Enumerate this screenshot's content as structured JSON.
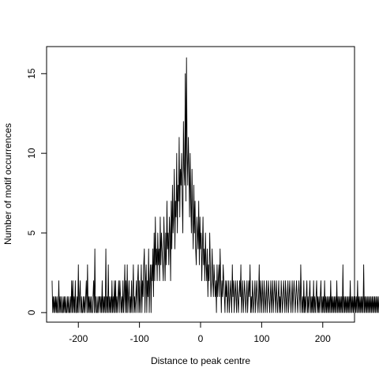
{
  "chart_data": {
    "type": "line",
    "title": "",
    "xlabel": "Distance to peak centre",
    "ylabel": "Number of motif occurrences",
    "xlim": [
      -252,
      252
    ],
    "ylim": [
      -0.6,
      16.7
    ],
    "x_ticks": [
      -200,
      -100,
      0,
      100,
      200
    ],
    "y_ticks": [
      0,
      5,
      10,
      15
    ],
    "x_tick_labels": [
      "-200",
      "-100",
      "0",
      "100",
      "200"
    ],
    "y_tick_labels": [
      "0",
      "5",
      "10",
      "15"
    ],
    "grid": false,
    "line_color": "#000000",
    "series": [
      {
        "x_start": -243,
        "x_step": 1,
        "values": [
          2,
          0,
          1,
          0,
          1,
          0,
          1,
          0,
          1,
          0,
          0,
          2,
          0,
          1,
          0,
          1,
          0,
          0,
          1,
          0,
          1,
          0,
          1,
          0,
          0,
          1,
          0,
          1,
          0,
          0,
          1,
          0,
          2,
          0,
          2,
          0,
          1,
          0,
          2,
          0,
          0,
          1,
          0,
          3,
          0,
          1,
          2,
          0,
          1,
          0,
          0,
          1,
          0,
          1,
          0,
          1,
          2,
          0,
          3,
          0,
          1,
          0,
          1,
          0,
          1,
          0,
          0,
          1,
          2,
          0,
          4,
          0,
          1,
          0,
          0,
          1,
          0,
          1,
          1,
          0,
          1,
          0,
          2,
          0,
          1,
          0,
          1,
          0,
          4,
          0,
          1,
          0,
          3,
          0,
          1,
          0,
          1,
          0,
          2,
          0,
          1,
          0,
          2,
          0,
          2,
          0,
          1,
          0,
          1,
          2,
          0,
          2,
          1,
          0,
          1,
          0,
          2,
          0,
          1,
          3,
          0,
          2,
          0,
          3,
          0,
          1,
          2,
          0,
          1,
          0,
          2,
          0,
          1,
          3,
          0,
          1,
          0,
          1,
          2,
          0,
          2,
          3,
          0,
          2,
          0,
          1,
          3,
          0,
          2,
          1,
          3,
          4,
          0,
          2,
          3,
          0,
          2,
          1,
          4,
          0,
          2,
          3,
          0,
          3,
          2,
          4,
          1,
          5,
          2,
          6,
          3,
          4,
          2,
          5,
          3,
          4,
          2,
          6,
          3,
          5,
          4,
          3,
          2,
          6,
          4,
          2,
          5,
          3,
          7,
          4,
          5,
          3,
          6,
          5,
          2,
          7,
          4,
          8,
          5,
          6,
          9,
          4,
          7,
          6,
          10,
          5,
          8,
          7,
          11,
          6,
          9,
          8,
          10,
          7,
          5,
          12,
          9,
          8,
          15,
          7,
          16,
          10,
          8,
          11,
          9,
          6,
          10,
          7,
          5,
          9,
          6,
          4,
          8,
          5,
          7,
          4,
          3,
          6,
          5,
          4,
          7,
          3,
          6,
          4,
          5,
          2,
          4,
          6,
          3,
          4,
          2,
          5,
          3,
          2,
          4,
          1,
          3,
          2,
          5,
          3,
          1,
          2,
          4,
          2,
          1,
          3,
          2,
          1,
          2,
          0,
          3,
          1,
          2,
          3,
          1,
          4,
          2,
          0,
          2,
          1,
          3,
          2,
          1,
          0,
          2,
          1,
          2,
          0,
          1,
          2,
          0,
          1,
          2,
          1,
          0,
          3,
          1,
          2,
          0,
          1,
          2,
          1,
          0,
          2,
          1,
          0,
          1,
          2,
          1,
          3,
          0,
          1,
          2,
          0,
          1,
          2,
          1,
          0,
          1,
          2,
          0,
          1,
          2,
          1,
          3,
          0,
          1,
          0,
          2,
          1,
          0,
          1,
          2,
          0,
          1,
          2,
          1,
          0,
          1,
          3,
          0,
          2,
          1,
          0,
          2,
          1,
          0,
          2,
          1,
          0,
          1,
          2,
          0,
          1,
          2,
          1,
          0,
          1,
          2,
          0,
          1,
          2,
          0,
          1,
          2,
          1,
          0,
          2,
          1,
          0,
          1,
          2,
          0,
          1,
          0,
          2,
          1,
          0,
          1,
          2,
          1,
          0,
          2,
          1,
          0,
          1,
          2,
          0,
          1,
          2,
          1,
          0,
          1,
          2,
          0,
          1,
          2,
          1,
          0,
          1,
          2,
          1,
          0,
          1,
          2,
          1,
          0,
          3,
          1,
          0,
          1,
          0,
          2,
          0,
          1,
          0,
          1,
          2,
          0,
          1,
          0,
          1,
          2,
          0,
          1,
          0,
          1,
          0,
          2,
          0,
          1,
          0,
          1,
          2,
          0,
          1,
          0,
          1,
          0,
          1,
          2,
          0,
          1,
          0,
          1,
          0,
          2,
          0,
          1,
          0,
          1,
          0,
          1,
          0,
          1,
          0,
          2,
          0,
          1,
          0,
          1,
          0,
          1,
          0,
          1,
          0,
          2,
          0,
          1,
          0,
          1,
          0,
          1,
          0,
          1,
          0,
          3,
          0,
          1,
          0,
          1,
          0,
          1,
          0,
          1,
          0,
          1,
          0,
          2,
          0,
          1,
          0,
          1,
          0,
          1,
          0,
          1,
          0,
          1,
          0,
          2,
          0,
          1,
          0,
          1,
          0,
          1,
          0,
          1,
          0,
          3,
          0,
          1,
          0,
          1,
          0,
          1,
          0,
          1,
          0,
          1,
          0,
          1,
          0,
          1,
          0,
          1,
          0,
          1,
          0,
          1,
          0,
          1,
          0,
          1,
          0,
          1,
          0,
          1,
          0,
          1,
          0,
          1,
          0,
          1,
          0,
          3,
          0,
          1
        ]
      }
    ]
  }
}
